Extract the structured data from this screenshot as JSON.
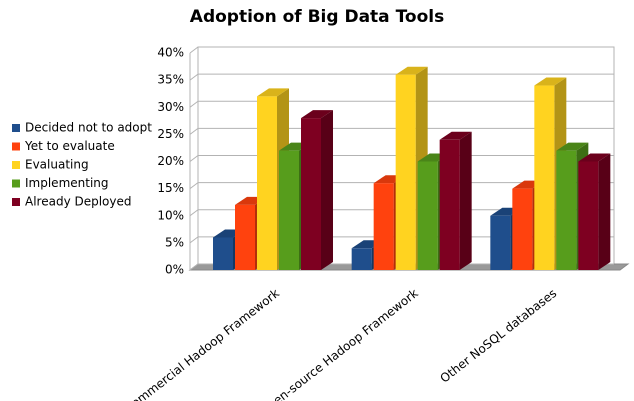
{
  "chart_data": {
    "type": "bar3d",
    "title": "Adoption of Big Data Tools",
    "categories": [
      "Commercial Hadoop Framework",
      "Open-source Hadoop Framework",
      "Other NoSQL databases"
    ],
    "series": [
      {
        "name": "Decided not to adopt",
        "color": "#1f4e8c",
        "values": [
          6,
          4,
          10
        ]
      },
      {
        "name": "Yet to evaluate",
        "color": "#ff420e",
        "values": [
          12,
          16,
          15
        ]
      },
      {
        "name": "Evaluating",
        "color": "#ffd320",
        "values": [
          32,
          36,
          34
        ]
      },
      {
        "name": "Implementing",
        "color": "#579d1c",
        "values": [
          22,
          20,
          22
        ]
      },
      {
        "name": "Already Deployed",
        "color": "#7e0021",
        "values": [
          28,
          24,
          20
        ]
      }
    ],
    "ylim": [
      0,
      40
    ],
    "yticks": [
      {
        "value": 0,
        "label": "0%"
      },
      {
        "value": 5,
        "label": "5%"
      },
      {
        "value": 10,
        "label": "10%"
      },
      {
        "value": 15,
        "label": "15%"
      },
      {
        "value": 20,
        "label": "20%"
      },
      {
        "value": 25,
        "label": "25%"
      },
      {
        "value": 30,
        "label": "30%"
      },
      {
        "value": 35,
        "label": "35%"
      },
      {
        "value": 40,
        "label": "40%"
      }
    ],
    "grid": true,
    "legend": "left"
  }
}
